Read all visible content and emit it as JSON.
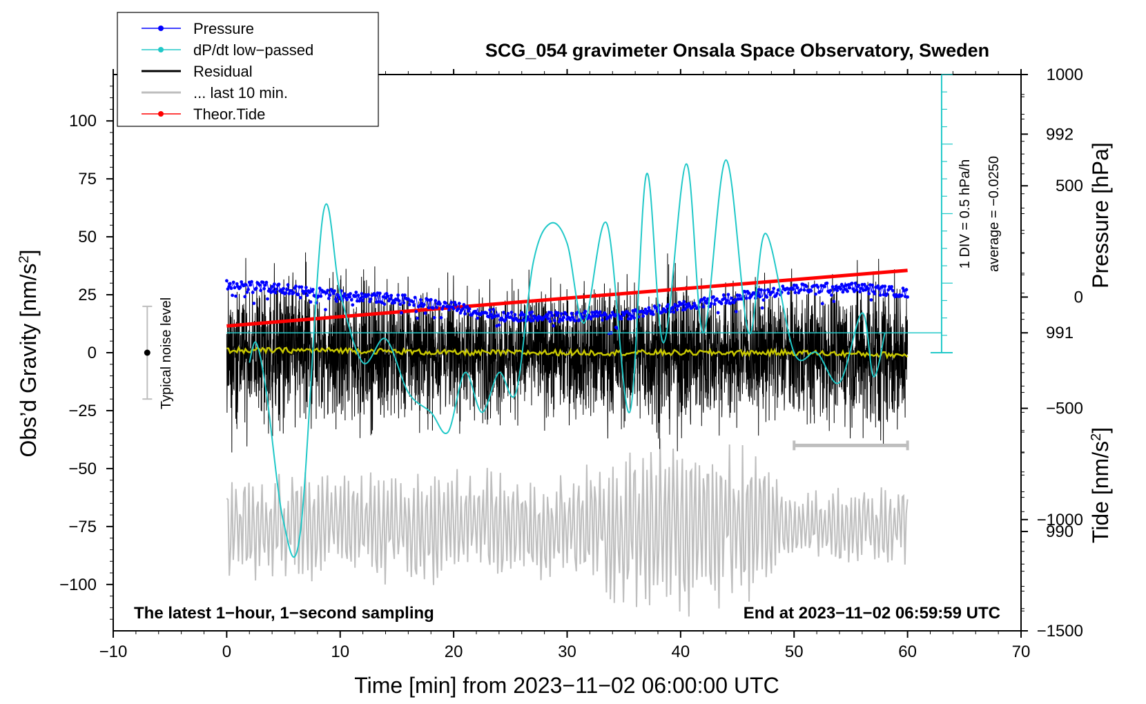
{
  "chart_data": {
    "type": "line",
    "title": "SCG_054 gravimeter Onsala Space Observatory, Sweden",
    "xlabel": "Time [min] from 2023−11−02 06:00:00 UTC",
    "ylabel_left_main": "Obs’d Gravity [nm/s",
    "ylabel_left_sup": "2",
    "ylabel_left_end": "]",
    "ylabel_right_pressure": "Pressure [hPa]",
    "ylabel_right_tide_main": "Tide [nm/s",
    "ylabel_right_tide_sup": "2",
    "ylabel_right_tide_end": "]",
    "xlim": [
      -10,
      70
    ],
    "ylim_gravity": [
      -120,
      120
    ],
    "ylim_pressure": [
      989.5,
      992.3
    ],
    "ylim_tide": [
      -1500,
      1000
    ],
    "x_ticks": [
      {
        "value": -10,
        "label": "−10"
      },
      {
        "value": 0,
        "label": "0"
      },
      {
        "value": 10,
        "label": "10"
      },
      {
        "value": 20,
        "label": "20"
      },
      {
        "value": 30,
        "label": "30"
      },
      {
        "value": 40,
        "label": "40"
      },
      {
        "value": 50,
        "label": "50"
      },
      {
        "value": 60,
        "label": "60"
      },
      {
        "value": 70,
        "label": "70"
      }
    ],
    "gravity_ticks": [
      {
        "value": 100,
        "label": "100"
      },
      {
        "value": 75,
        "label": "75"
      },
      {
        "value": 50,
        "label": "50"
      },
      {
        "value": 25,
        "label": "25"
      },
      {
        "value": 0,
        "label": "0"
      },
      {
        "value": -25,
        "label": "−25"
      },
      {
        "value": -50,
        "label": "−50"
      },
      {
        "value": -75,
        "label": "−75"
      },
      {
        "value": -100,
        "label": "−100"
      }
    ],
    "pressure_ticks": [
      {
        "value": 992,
        "label": "992"
      },
      {
        "value": 991,
        "label": "991"
      },
      {
        "value": 990,
        "label": "990"
      }
    ],
    "tide_ticks": [
      {
        "value": 1000,
        "label": "1000"
      },
      {
        "value": 500,
        "label": "500"
      },
      {
        "value": 0,
        "label": "0"
      },
      {
        "value": -500,
        "label": "−500"
      },
      {
        "value": -1000,
        "label": "−1000"
      },
      {
        "value": -1500,
        "label": "−1500"
      }
    ],
    "legend": [
      {
        "name": "Pressure",
        "color": "#0000ff",
        "marker": true
      },
      {
        "name": "dP/dt low−passed",
        "color": "#20c8c8",
        "marker": true
      },
      {
        "name": "Residual",
        "color": "#000000",
        "marker": false
      },
      {
        "name": "... last 10 min.",
        "color": "#bebebe",
        "marker": false
      },
      {
        "name": "Theor.Tide",
        "color": "#ff0000",
        "marker": true
      }
    ],
    "dpdt_scale_label": "1 DIV = 0.5 hPa/h",
    "dpdt_average_label": "average = −0.0250",
    "dpdt_zero_line_pressure": 991.0,
    "noise_label": "Typical noise level",
    "noise_range": [
      -20,
      20
    ],
    "last10_bar_range": [
      50,
      60
    ],
    "last10_bar_gravity": -40,
    "footer_left": "The latest 1−hour, 1−second sampling",
    "footer_right": "End at 2023−11−02 06:59:59 UTC",
    "series": [
      {
        "name": "Pressure",
        "color": "#0000ff",
        "axis": "pressure",
        "x": [
          0,
          5,
          10,
          15,
          20,
          25,
          30,
          35,
          40,
          45,
          50,
          55,
          60
        ],
        "values": [
          991.25,
          991.22,
          991.19,
          991.17,
          991.13,
          991.08,
          991.08,
          991.09,
          991.13,
          991.18,
          991.22,
          991.23,
          991.2
        ]
      },
      {
        "name": "dP/dt low-passed",
        "color": "#20c8c8",
        "axis": "pressure",
        "x": [
          2,
          2.6,
          3.5,
          5,
          6.5,
          8.5,
          10,
          12,
          14,
          16,
          18,
          19.5,
          21,
          22.5,
          24,
          25.5,
          27,
          28.5,
          30,
          31.5,
          33.5,
          35.5,
          37,
          38.5,
          40.5,
          42,
          44,
          46,
          47.5,
          50,
          52,
          54,
          56,
          57,
          58
        ],
        "values": [
          990.85,
          990.95,
          990.7,
          990.05,
          990.0,
          991.6,
          991.2,
          990.85,
          990.97,
          990.7,
          990.6,
          990.5,
          990.8,
          990.6,
          990.8,
          990.7,
          991.35,
          991.55,
          991.45,
          991.05,
          991.55,
          990.6,
          991.8,
          990.95,
          991.85,
          991.0,
          991.87,
          991.0,
          991.5,
          990.9,
          990.9,
          990.75,
          991.1,
          990.78,
          991.0
        ]
      },
      {
        "name": "Residual (1-min smoothed)",
        "color": "#c8c800",
        "axis": "gravity",
        "x": [
          0,
          10,
          20,
          30,
          40,
          50,
          60
        ],
        "values": [
          1,
          1,
          0,
          0,
          0,
          0,
          -1
        ]
      },
      {
        "name": "Residual",
        "color": "#000000",
        "axis": "gravity",
        "amplitude_envelope_x": [
          0,
          5,
          10,
          15,
          20,
          25,
          30,
          35,
          40,
          45,
          50,
          55,
          57,
          60
        ],
        "amplitude_envelope": [
          35,
          40,
          35,
          33,
          30,
          32,
          30,
          35,
          38,
          33,
          32,
          35,
          45,
          30
        ]
      },
      {
        "name": "Theor.Tide",
        "color": "#ff0000",
        "axis": "tide",
        "x": [
          0,
          60
        ],
        "values": [
          -130,
          120
        ]
      },
      {
        "name": "... last 10 min.",
        "color": "#bebebe",
        "axis": "gravity",
        "x_range": [
          0,
          60
        ],
        "center": -75,
        "amplitude_envelope_x": [
          0,
          10,
          20,
          30,
          38,
          42,
          46,
          50,
          60
        ],
        "amplitude_envelope": [
          25,
          25,
          27,
          25,
          45,
          42,
          40,
          15,
          20
        ]
      }
    ]
  }
}
